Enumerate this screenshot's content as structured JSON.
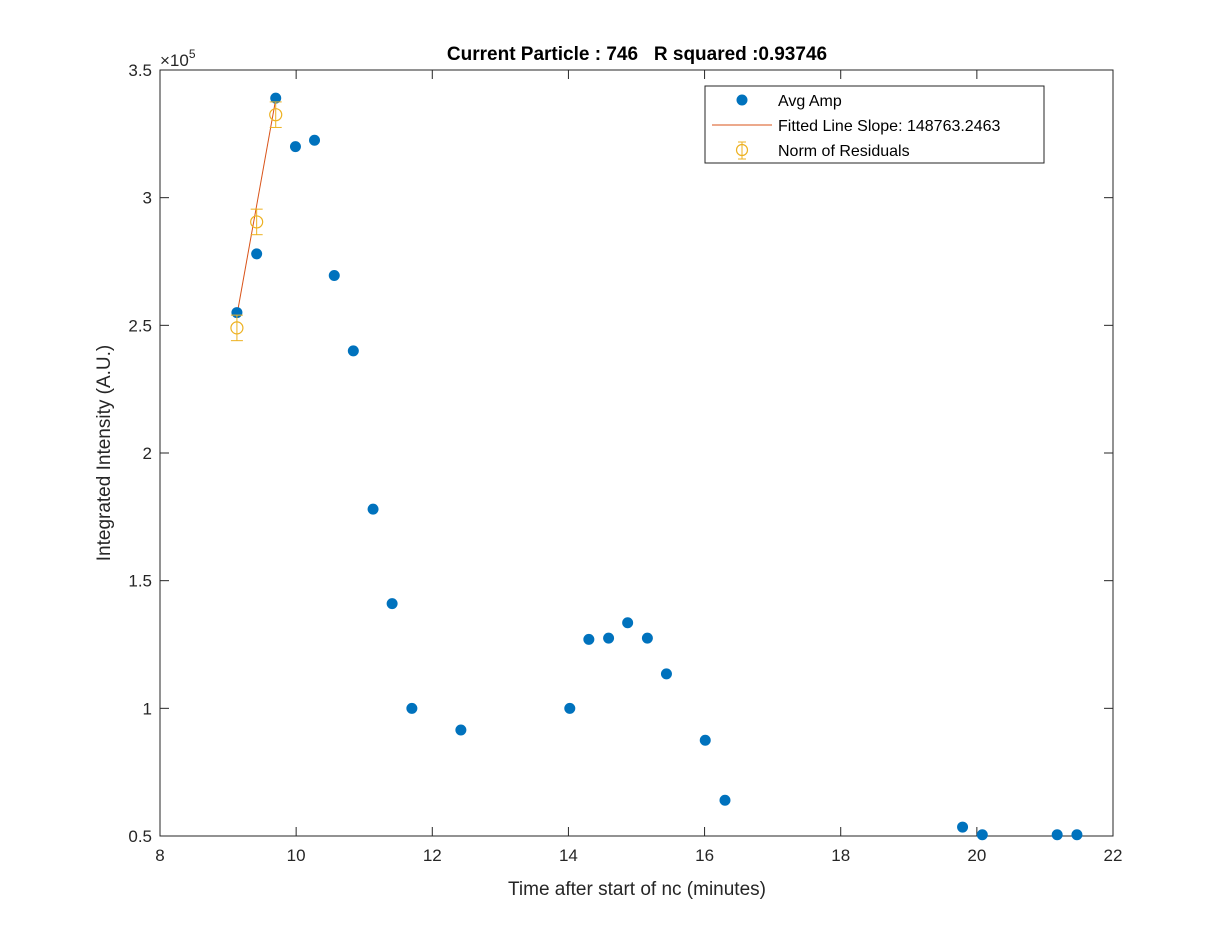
{
  "figure": {
    "title": "Current Particle : 746   R squared :0.93746"
  },
  "chart_data": {
    "type": "scatter",
    "title": "Current Particle : 746   R squared :0.93746",
    "xlabel": "Time after start of nc (minutes)",
    "ylabel": "Integrated Intensity (A.U.)",
    "xlim": [
      8,
      22
    ],
    "ylim": [
      50000,
      350000
    ],
    "y_exponent_label": "×10",
    "y_exponent_power": "5",
    "x_ticks": [
      8,
      10,
      12,
      14,
      16,
      18,
      20,
      22
    ],
    "x_tick_labels": [
      "8",
      "10",
      "12",
      "14",
      "16",
      "18",
      "20",
      "22"
    ],
    "y_ticks": [
      50000,
      100000,
      150000,
      200000,
      250000,
      300000,
      350000
    ],
    "y_tick_labels": [
      "0.5",
      "1",
      "1.5",
      "2",
      "2.5",
      "3",
      "3.5"
    ],
    "grid": false,
    "legend_position": "top-right",
    "series": [
      {
        "name": "Avg Amp",
        "kind": "marker",
        "color": "#0072BD",
        "x": [
          9.13,
          9.42,
          9.7,
          9.99,
          10.27,
          10.56,
          10.84,
          11.13,
          11.41,
          11.7,
          12.42,
          14.02,
          14.3,
          14.59,
          14.87,
          15.16,
          15.44,
          16.01,
          16.3,
          19.79,
          20.08,
          21.18,
          21.47
        ],
        "y": [
          255000,
          278000,
          339000,
          320000,
          322500,
          269500,
          240000,
          178000,
          141000,
          100000,
          91500,
          100000,
          127000,
          127500,
          133500,
          127500,
          113500,
          87500,
          64000,
          53500,
          50500,
          50500,
          50500
        ]
      },
      {
        "name": "Fitted Line Slope: 148763.2463",
        "kind": "line",
        "color": "#D95319",
        "x": [
          9.13,
          9.7
        ],
        "y": [
          254000,
          338500
        ]
      },
      {
        "name": "Norm of Residuals",
        "kind": "errorbar",
        "color": "#EDB120",
        "x": [
          9.13,
          9.42,
          9.7
        ],
        "y": [
          249000,
          290500,
          332500
        ],
        "err": [
          5000,
          5000,
          5000
        ]
      }
    ]
  }
}
